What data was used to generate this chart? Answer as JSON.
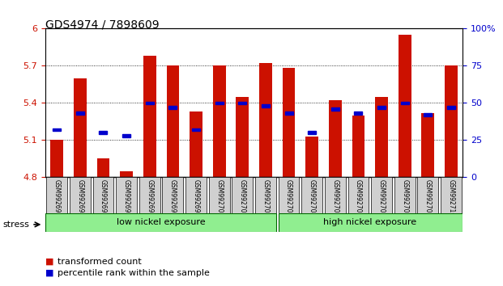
{
  "title": "GDS4974 / 7898609",
  "samples": [
    "GSM992693",
    "GSM992694",
    "GSM992695",
    "GSM992696",
    "GSM992697",
    "GSM992698",
    "GSM992699",
    "GSM992700",
    "GSM992701",
    "GSM992702",
    "GSM992703",
    "GSM992704",
    "GSM992705",
    "GSM992706",
    "GSM992707",
    "GSM992708",
    "GSM992709",
    "GSM992710"
  ],
  "red_values": [
    5.1,
    5.6,
    4.95,
    4.85,
    5.78,
    5.7,
    5.33,
    5.7,
    5.45,
    5.72,
    5.68,
    5.13,
    5.42,
    5.3,
    5.45,
    5.95,
    5.32,
    5.7
  ],
  "blue_percentiles": [
    32,
    43,
    30,
    28,
    50,
    47,
    32,
    50,
    50,
    48,
    43,
    30,
    46,
    43,
    47,
    50,
    42,
    47
  ],
  "ymin": 4.8,
  "ymax": 6.0,
  "yticks_left": [
    4.8,
    5.1,
    5.4,
    5.7,
    6.0
  ],
  "ytick_labels_left": [
    "4.8",
    "5.1",
    "5.4",
    "5.7",
    "6"
  ],
  "yticks_right": [
    0,
    25,
    50,
    75,
    100
  ],
  "ytick_labels_right": [
    "0",
    "25",
    "50",
    "75",
    "100%"
  ],
  "bar_color": "#cc1100",
  "dot_color": "#0000cc",
  "low_nickel_count": 10,
  "high_nickel_count": 8,
  "low_label": "low nickel exposure",
  "high_label": "high nickel exposure",
  "stress_label": "stress",
  "legend_red": "transformed count",
  "legend_blue": "percentile rank within the sample",
  "left_axis_color": "#cc1100",
  "right_axis_color": "#0000cc"
}
